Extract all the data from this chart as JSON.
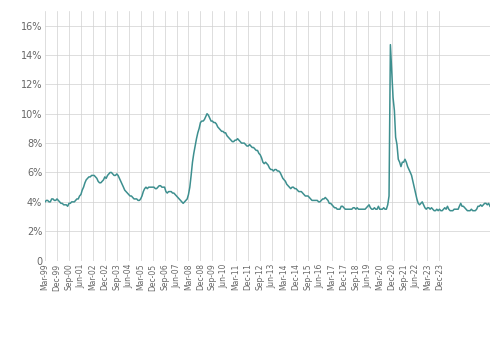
{
  "line_color": "#3d8f8f",
  "line_width": 1.1,
  "background_color": "#ffffff",
  "grid_color": "#d0d0d0",
  "tick_label_color": "#666666",
  "ylim": [
    0,
    17.0
  ],
  "yticks": [
    0,
    2,
    4,
    6,
    8,
    10,
    12,
    14,
    16
  ],
  "ytick_labels": [
    "0",
    "2%",
    "4%",
    "6%",
    "8%",
    "10%",
    "12%",
    "14%",
    "16%"
  ],
  "xtick_labels": [
    "Mar-99",
    "Dec-99",
    "Sep-00",
    "Jun-01",
    "Mar-02",
    "Dec-02",
    "Sep-03",
    "Jun-04",
    "Mar-05",
    "Dec-05",
    "Sep-06",
    "Jun-07",
    "Mar-08",
    "Dec-08",
    "Sep-09",
    "Jun-10",
    "Mar-11",
    "Dec-11",
    "Sep-12",
    "Jun-13",
    "Mar-14",
    "Dec-14",
    "Sep-15",
    "Jun-16",
    "Mar-17",
    "Dec-17",
    "Sep-18",
    "Jun-19",
    "Mar-20",
    "Dec-20",
    "Sep-21",
    "Jun-22",
    "Mar-23",
    "Dec-23"
  ],
  "monthly_data": [
    4.0,
    4.1,
    4.1,
    4.0,
    4.0,
    4.2,
    4.2,
    4.1,
    4.1,
    4.2,
    4.1,
    4.0,
    3.9,
    3.9,
    3.8,
    3.8,
    3.8,
    3.7,
    3.9,
    3.9,
    4.0,
    4.0,
    4.0,
    4.1,
    4.2,
    4.2,
    4.4,
    4.5,
    4.8,
    5.0,
    5.3,
    5.5,
    5.6,
    5.7,
    5.7,
    5.8,
    5.8,
    5.8,
    5.7,
    5.6,
    5.4,
    5.3,
    5.3,
    5.4,
    5.5,
    5.7,
    5.6,
    5.8,
    5.9,
    6.0,
    6.0,
    5.9,
    5.8,
    5.8,
    5.9,
    5.8,
    5.6,
    5.4,
    5.2,
    5.0,
    4.8,
    4.7,
    4.6,
    4.5,
    4.4,
    4.4,
    4.3,
    4.2,
    4.2,
    4.2,
    4.1,
    4.1,
    4.2,
    4.4,
    4.7,
    4.9,
    5.0,
    4.9,
    5.0,
    5.0,
    5.0,
    5.0,
    5.0,
    4.9,
    4.9,
    5.0,
    5.1,
    5.1,
    5.0,
    5.0,
    5.0,
    4.7,
    4.6,
    4.7,
    4.7,
    4.7,
    4.6,
    4.6,
    4.5,
    4.4,
    4.3,
    4.2,
    4.1,
    4.0,
    3.9,
    4.0,
    4.1,
    4.2,
    4.5,
    5.0,
    5.8,
    6.7,
    7.3,
    7.8,
    8.3,
    8.7,
    9.0,
    9.4,
    9.5,
    9.5,
    9.6,
    9.8,
    10.0,
    9.9,
    9.7,
    9.5,
    9.5,
    9.4,
    9.4,
    9.3,
    9.1,
    9.0,
    8.9,
    8.8,
    8.8,
    8.7,
    8.7,
    8.5,
    8.4,
    8.3,
    8.2,
    8.1,
    8.1,
    8.2,
    8.2,
    8.3,
    8.2,
    8.1,
    8.0,
    8.0,
    8.0,
    7.9,
    7.8,
    7.8,
    7.9,
    7.8,
    7.7,
    7.7,
    7.6,
    7.5,
    7.5,
    7.3,
    7.2,
    7.0,
    6.7,
    6.6,
    6.7,
    6.6,
    6.5,
    6.3,
    6.2,
    6.2,
    6.1,
    6.2,
    6.2,
    6.1,
    6.1,
    6.0,
    5.8,
    5.6,
    5.5,
    5.4,
    5.2,
    5.1,
    5.0,
    4.9,
    5.0,
    5.0,
    4.9,
    4.9,
    4.8,
    4.7,
    4.7,
    4.7,
    4.6,
    4.5,
    4.4,
    4.4,
    4.4,
    4.3,
    4.2,
    4.1,
    4.1,
    4.1,
    4.1,
    4.1,
    4.0,
    4.0,
    4.1,
    4.2,
    4.2,
    4.3,
    4.2,
    4.1,
    3.9,
    3.9,
    3.8,
    3.7,
    3.6,
    3.6,
    3.5,
    3.5,
    3.5,
    3.7,
    3.7,
    3.6,
    3.5,
    3.5,
    3.5,
    3.5,
    3.5,
    3.5,
    3.6,
    3.6,
    3.5,
    3.6,
    3.5,
    3.5,
    3.5,
    3.5,
    3.5,
    3.5,
    3.6,
    3.7,
    3.8,
    3.6,
    3.5,
    3.5,
    3.6,
    3.5,
    3.5,
    3.7,
    3.5,
    3.5,
    3.5,
    3.6,
    3.5,
    3.5,
    3.8,
    4.4,
    14.7,
    13.0,
    11.1,
    10.2,
    8.4,
    7.9,
    6.9,
    6.7,
    6.4,
    6.7,
    6.7,
    6.9,
    6.7,
    6.4,
    6.2,
    6.0,
    5.8,
    5.4,
    5.0,
    4.6,
    4.2,
    3.9,
    3.8,
    3.9,
    4.0,
    3.8,
    3.6,
    3.5,
    3.6,
    3.6,
    3.5,
    3.6,
    3.5,
    3.4,
    3.4,
    3.5,
    3.4,
    3.5,
    3.4,
    3.4,
    3.5,
    3.6,
    3.5,
    3.7,
    3.5,
    3.4,
    3.4,
    3.4,
    3.5,
    3.5,
    3.5,
    3.5,
    3.7,
    3.9,
    3.7,
    3.7,
    3.6,
    3.5,
    3.4,
    3.4,
    3.4,
    3.5,
    3.4,
    3.4,
    3.4,
    3.5,
    3.7,
    3.7,
    3.8,
    3.7,
    3.8,
    3.9,
    3.9,
    3.8,
    3.9,
    3.7
  ]
}
